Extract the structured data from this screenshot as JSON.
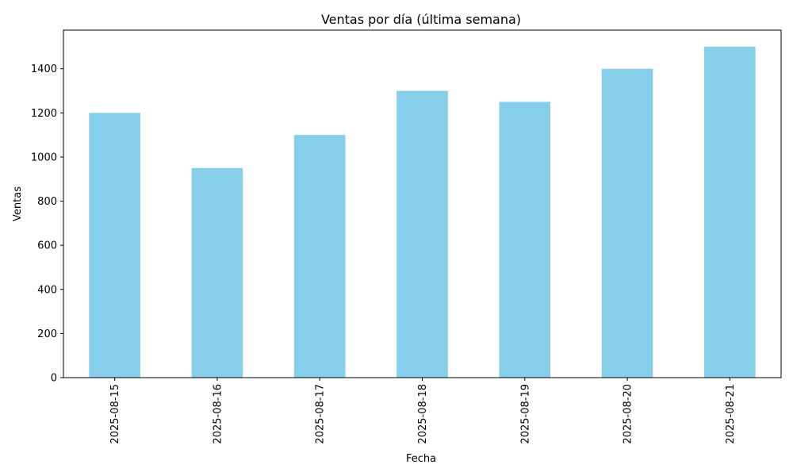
{
  "chart_data": {
    "type": "bar",
    "title": "Ventas por día (última semana)",
    "xlabel": "Fecha",
    "ylabel": "Ventas",
    "categories": [
      "2025-08-15",
      "2025-08-16",
      "2025-08-17",
      "2025-08-18",
      "2025-08-19",
      "2025-08-20",
      "2025-08-21"
    ],
    "values": [
      1200,
      950,
      1100,
      1300,
      1250,
      1400,
      1500
    ],
    "yticks": [
      0,
      200,
      400,
      600,
      800,
      1000,
      1200,
      1400
    ],
    "ylim": [
      0,
      1575
    ],
    "bar_color": "#87CEEB",
    "grid": false,
    "legend": "none",
    "x_tick_rotation": "vertical"
  }
}
